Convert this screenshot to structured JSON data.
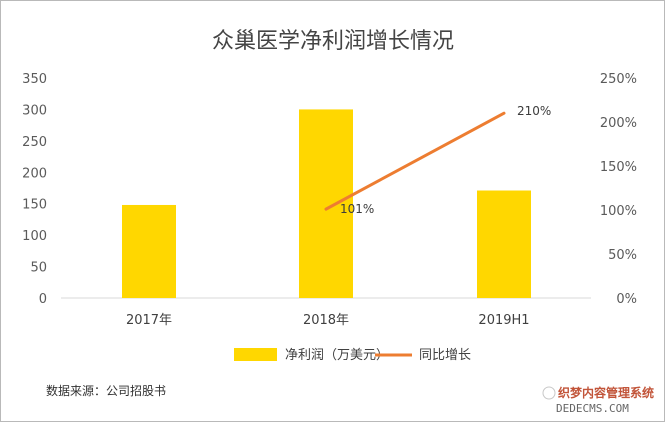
{
  "chart_data": {
    "type": "bar",
    "title": "众巢医学净利润增长情况",
    "categories": [
      "2017年",
      "2018年",
      "2019H1"
    ],
    "left_axis": {
      "range": [
        0,
        350
      ],
      "ticks": [
        "0",
        "50",
        "100",
        "150",
        "200",
        "250",
        "300",
        "350"
      ]
    },
    "right_axis": {
      "range": [
        0,
        250
      ],
      "ticks": [
        "0%",
        "50%",
        "100%",
        "150%",
        "200%",
        "250%"
      ]
    },
    "series": [
      {
        "name": "净利润（万美元）",
        "type": "bar",
        "axis": "left",
        "color": "#FFD700",
        "values": [
          148,
          300,
          171
        ]
      },
      {
        "name": "同比增长",
        "type": "line",
        "axis": "right",
        "color": "#ED7D31",
        "values": [
          null,
          101,
          210
        ],
        "labels": [
          "",
          "101%",
          "210%"
        ]
      }
    ],
    "grid": false,
    "legend": "bottom"
  },
  "source_note": "数据来源：公司招股书",
  "watermark": {
    "line1": "织梦内容管理系统",
    "line2": "DEDECMS.COM"
  }
}
